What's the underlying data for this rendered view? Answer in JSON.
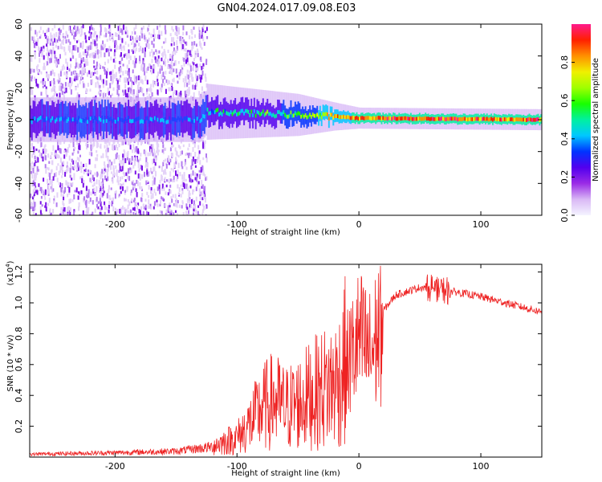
{
  "title": "GN04.2024.017.09.08.E03",
  "chart_data": [
    {
      "type": "heatmap",
      "xlabel": "Height of straight line (km)",
      "ylabel": "Frequency (Hz)",
      "xlim": [
        -270,
        150
      ],
      "ylim": [
        -60,
        60
      ],
      "x_ticks": [
        -200,
        -100,
        0,
        100
      ],
      "y_ticks": [
        -60,
        -40,
        -20,
        0,
        20,
        40,
        60
      ],
      "colorbar": {
        "label": "Normalized spectral amplitude",
        "range": [
          0.0,
          1.0
        ],
        "ticks": [
          0.0,
          0.2,
          0.4,
          0.6,
          0.8
        ],
        "colormap": [
          "#f4f4ff",
          "#d9b8f5",
          "#9a2be6",
          "#5200ee",
          "#0033ff",
          "#00c8ff",
          "#00f0a0",
          "#18ff00",
          "#a0ff00",
          "#f0f000",
          "#ff9000",
          "#ff2000",
          "#ff1a8c"
        ]
      },
      "description_points": [
        {
          "x": -270,
          "center_hz": 0,
          "halfwidth_hz": 60,
          "amplitude": 0.3
        },
        {
          "x": -130,
          "center_hz": 0,
          "halfwidth_hz": 60,
          "amplitude": 0.3
        },
        {
          "x": -125,
          "center_hz": 5,
          "halfwidth_hz": 8,
          "amplitude": 0.45
        },
        {
          "x": -50,
          "center_hz": 3,
          "halfwidth_hz": 6,
          "amplitude": 0.55
        },
        {
          "x": -20,
          "center_hz": 2,
          "halfwidth_hz": 4,
          "amplitude": 0.8
        },
        {
          "x": 0,
          "center_hz": 1,
          "halfwidth_hz": 3,
          "amplitude": 0.85
        },
        {
          "x": 150,
          "center_hz": 0,
          "halfwidth_hz": 3,
          "amplitude": 0.9
        }
      ]
    },
    {
      "type": "line",
      "xlabel": "Height of straight line (km)",
      "ylabel": "SNR (10 * v/v)",
      "y_multiplier": "(x10^4)",
      "xlim": [
        -270,
        150
      ],
      "ylim": [
        0,
        1.25
      ],
      "x_ticks": [
        -200,
        -100,
        0,
        100
      ],
      "y_ticks": [
        0.2,
        0.4,
        0.6,
        0.8,
        1.0,
        1.2
      ],
      "series": [
        {
          "color": "#ee2222",
          "x": [
            -270,
            -200,
            -150,
            -120,
            -100,
            -90,
            -80,
            -70,
            -60,
            -50,
            -40,
            -30,
            -20,
            -15,
            -10,
            0,
            10,
            20,
            30,
            50,
            60,
            70,
            80,
            100,
            120,
            150
          ],
          "values": [
            0.02,
            0.03,
            0.04,
            0.07,
            0.12,
            0.2,
            0.3,
            0.35,
            0.3,
            0.33,
            0.38,
            0.42,
            0.45,
            0.5,
            0.62,
            0.8,
            0.7,
            0.95,
            1.05,
            1.1,
            1.1,
            1.08,
            1.07,
            1.04,
            1.0,
            0.94
          ]
        }
      ]
    }
  ]
}
